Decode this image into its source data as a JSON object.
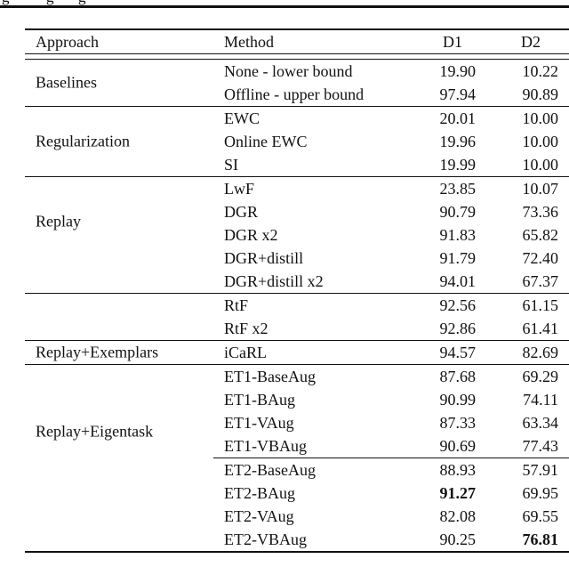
{
  "colors": {
    "background": "#ffffff",
    "text": "#111111",
    "rule": "#111111"
  },
  "cropped_line": {
    "glyphs": [
      "g",
      "g",
      "g"
    ]
  },
  "table": {
    "headers": {
      "approach": "Approach",
      "method": "Method",
      "d1": "D1",
      "d2": "D2"
    },
    "groups": [
      {
        "approach": "Baselines",
        "rows": [
          {
            "method": "None - lower bound",
            "d1": "19.90",
            "d2": "10.22"
          },
          {
            "method": "Offline - upper bound",
            "d1": "97.94",
            "d2": "90.89"
          }
        ]
      },
      {
        "approach": "Regularization",
        "rows": [
          {
            "method": "EWC",
            "d1": "20.01",
            "d2": "10.00"
          },
          {
            "method": "Online EWC",
            "d1": "19.96",
            "d2": "10.00"
          },
          {
            "method": "SI",
            "d1": "19.99",
            "d2": "10.00"
          }
        ]
      },
      {
        "approach": "Replay",
        "rows": [
          {
            "method": "LwF",
            "d1": "23.85",
            "d2": "10.07"
          },
          {
            "method": "DGR",
            "d1": "90.79",
            "d2": "73.36"
          },
          {
            "method": "DGR x2",
            "d1": "91.83",
            "d2": "65.82"
          },
          {
            "method": "DGR+distill",
            "d1": "91.79",
            "d2": "72.40"
          },
          {
            "method": "DGR+distill x2",
            "d1": "94.01",
            "d2": "67.37"
          }
        ]
      },
      {
        "approach": "",
        "rows": [
          {
            "method": "RtF",
            "d1": "92.56",
            "d2": "61.15"
          },
          {
            "method": "RtF x2",
            "d1": "92.86",
            "d2": "61.41"
          }
        ]
      },
      {
        "approach": "Replay+Exemplars",
        "rows": [
          {
            "method": "iCaRL",
            "d1": "94.57",
            "d2": "82.69"
          }
        ]
      },
      {
        "approach": "Replay+Eigentask",
        "rows": [
          {
            "method": "ET1-BaseAug",
            "d1": "87.68",
            "d2": "69.29"
          },
          {
            "method": "ET1-BAug",
            "d1": "90.99",
            "d2": "74.11"
          },
          {
            "method": "ET1-VAug",
            "d1": "87.33",
            "d2": "63.34"
          },
          {
            "method": "ET1-VBAug",
            "d1": "90.69",
            "d2": "77.43"
          },
          {
            "method": "ET2-BaseAug",
            "d1": "88.93",
            "d2": "57.91",
            "subrule_before": true
          },
          {
            "method": "ET2-BAug",
            "d1": "91.27",
            "d2": "69.95",
            "d1_bold": true
          },
          {
            "method": "ET2-VAug",
            "d1": "82.08",
            "d2": "69.55"
          },
          {
            "method": "ET2-VBAug",
            "d1": "90.25",
            "d2": "76.81",
            "d2_bold": true
          }
        ]
      }
    ]
  }
}
